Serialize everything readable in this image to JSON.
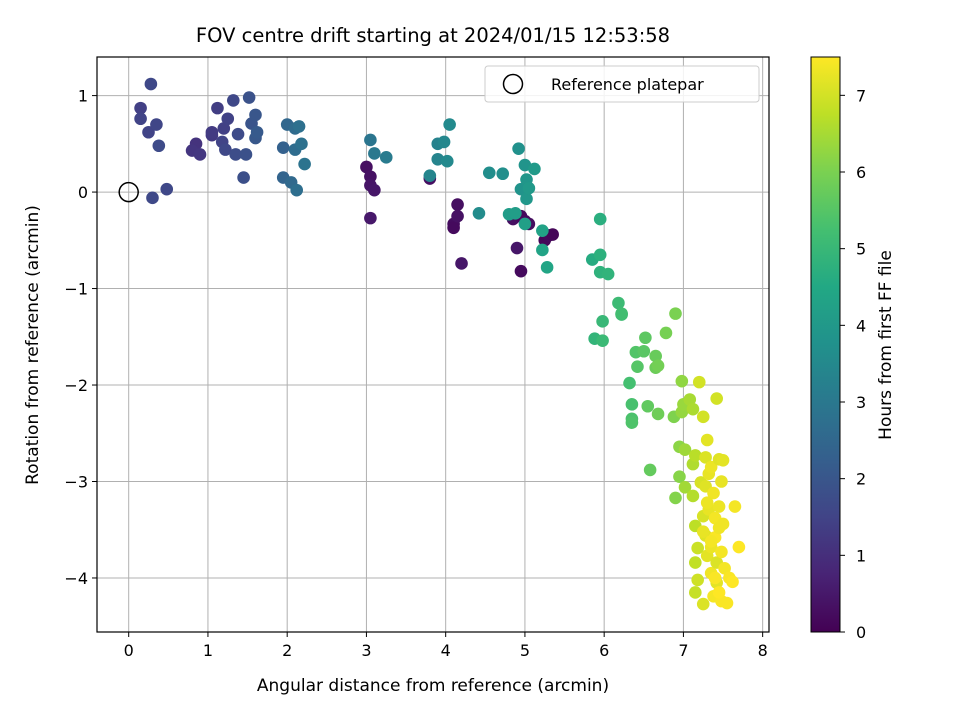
{
  "chart_data": {
    "type": "scatter",
    "title": "FOV centre drift starting at 2024/01/15 12:53:58",
    "xlabel": "Angular distance from reference (arcmin)",
    "ylabel": "Rotation from reference (arcmin)",
    "xlim": [
      -0.4,
      8.08
    ],
    "ylim": [
      -4.56,
      1.4
    ],
    "xticks": [
      0,
      1,
      2,
      3,
      4,
      5,
      6,
      7,
      8
    ],
    "yticks": [
      -4,
      -3,
      -2,
      -1,
      0,
      1
    ],
    "grid": true,
    "legend": {
      "placement": "top-right",
      "entries": [
        {
          "label": "Reference platepar",
          "marker": "open-circle"
        }
      ]
    },
    "colorbar": {
      "label": "Hours from first FF file",
      "range": [
        0,
        7.5
      ],
      "ticks": [
        0,
        1,
        2,
        3,
        4,
        5,
        6,
        7
      ],
      "colormap": "viridis"
    },
    "reference_point": {
      "x": 0,
      "y": 0
    },
    "points": [
      [
        3.0,
        0.26,
        0.3
      ],
      [
        3.05,
        0.16,
        0.35
      ],
      [
        3.05,
        0.07,
        0.4
      ],
      [
        3.1,
        0.02,
        0.45
      ],
      [
        3.05,
        -0.27,
        0.5
      ],
      [
        3.8,
        0.14,
        0.3
      ],
      [
        4.1,
        -0.33,
        0.25
      ],
      [
        4.1,
        -0.37,
        0.2
      ],
      [
        4.15,
        -0.13,
        0.3
      ],
      [
        4.15,
        -0.25,
        0.35
      ],
      [
        4.2,
        -0.74,
        0.45
      ],
      [
        4.85,
        -0.28,
        0.3
      ],
      [
        4.9,
        -0.58,
        0.45
      ],
      [
        4.95,
        -0.82,
        0.2
      ],
      [
        4.95,
        -0.25,
        0.15
      ],
      [
        5.0,
        -0.3,
        0.2
      ],
      [
        5.05,
        -0.33,
        0.25
      ],
      [
        5.25,
        -0.5,
        0.1
      ],
      [
        5.3,
        -0.45,
        0.15
      ],
      [
        5.35,
        -0.44,
        0.1
      ],
      [
        0.15,
        0.87,
        1.4
      ],
      [
        0.15,
        0.76,
        1.5
      ],
      [
        0.28,
        1.12,
        1.6
      ],
      [
        0.25,
        0.62,
        1.5
      ],
      [
        0.35,
        0.7,
        1.55
      ],
      [
        0.38,
        0.48,
        1.7
      ],
      [
        0.3,
        -0.06,
        1.65
      ],
      [
        0.48,
        0.03,
        1.6
      ],
      [
        0.85,
        0.5,
        1.1
      ],
      [
        0.8,
        0.43,
        1.15
      ],
      [
        0.9,
        0.39,
        1.2
      ],
      [
        1.05,
        0.59,
        1.25
      ],
      [
        1.05,
        0.62,
        1.3
      ],
      [
        1.12,
        0.87,
        1.35
      ],
      [
        1.2,
        0.66,
        1.4
      ],
      [
        1.25,
        0.76,
        1.45
      ],
      [
        1.18,
        0.52,
        1.5
      ],
      [
        1.22,
        0.44,
        1.6
      ],
      [
        1.32,
        0.95,
        1.6
      ],
      [
        1.38,
        0.6,
        1.7
      ],
      [
        1.35,
        0.39,
        1.75
      ],
      [
        1.45,
        0.15,
        1.8
      ],
      [
        1.48,
        0.39,
        1.85
      ],
      [
        1.52,
        0.98,
        1.9
      ],
      [
        1.55,
        0.71,
        1.95
      ],
      [
        1.6,
        0.8,
        2.0
      ],
      [
        1.6,
        0.56,
        2.05
      ],
      [
        1.62,
        0.62,
        2.1
      ],
      [
        1.95,
        0.46,
        2.3
      ],
      [
        1.95,
        0.15,
        2.4
      ],
      [
        2.0,
        0.7,
        2.5
      ],
      [
        2.05,
        0.1,
        2.55
      ],
      [
        2.1,
        0.66,
        2.6
      ],
      [
        2.1,
        0.44,
        2.65
      ],
      [
        2.12,
        0.02,
        2.7
      ],
      [
        2.15,
        0.68,
        2.75
      ],
      [
        2.18,
        0.5,
        2.8
      ],
      [
        2.22,
        0.29,
        2.85
      ],
      [
        3.05,
        0.54,
        2.9
      ],
      [
        3.1,
        0.4,
        3.0
      ],
      [
        3.25,
        0.36,
        3.1
      ],
      [
        3.8,
        0.17,
        3.4
      ],
      [
        3.9,
        0.5,
        3.3
      ],
      [
        3.9,
        0.34,
        3.35
      ],
      [
        3.98,
        0.52,
        3.45
      ],
      [
        4.02,
        0.32,
        3.5
      ],
      [
        4.05,
        0.7,
        3.55
      ],
      [
        4.42,
        -0.22,
        3.6
      ],
      [
        4.55,
        0.2,
        3.65
      ],
      [
        4.72,
        0.19,
        3.7
      ],
      [
        4.92,
        0.45,
        3.75
      ],
      [
        4.95,
        0.03,
        3.8
      ],
      [
        5.0,
        0.28,
        3.85
      ],
      [
        5.02,
        0.13,
        3.9
      ],
      [
        5.02,
        -0.07,
        3.95
      ],
      [
        5.05,
        0.04,
        4.0
      ],
      [
        5.12,
        0.24,
        4.05
      ],
      [
        4.8,
        -0.23,
        4.1
      ],
      [
        4.88,
        -0.22,
        4.15
      ],
      [
        5.0,
        -0.33,
        4.2
      ],
      [
        5.22,
        -0.4,
        4.3
      ],
      [
        5.22,
        -0.6,
        4.35
      ],
      [
        5.28,
        -0.78,
        4.4
      ],
      [
        5.85,
        -0.7,
        4.6
      ],
      [
        5.95,
        -0.28,
        4.7
      ],
      [
        5.95,
        -0.65,
        4.75
      ],
      [
        5.95,
        -0.83,
        4.8
      ],
      [
        6.05,
        -0.85,
        4.85
      ],
      [
        5.88,
        -1.52,
        4.9
      ],
      [
        5.98,
        -1.34,
        5.0
      ],
      [
        5.98,
        -1.54,
        5.05
      ],
      [
        6.18,
        -1.15,
        5.1
      ],
      [
        6.22,
        -1.27,
        5.15
      ],
      [
        6.22,
        -1.26,
        5.2
      ],
      [
        6.32,
        -1.98,
        5.25
      ],
      [
        6.35,
        -2.2,
        5.3
      ],
      [
        6.35,
        -2.35,
        5.35
      ],
      [
        6.35,
        -2.39,
        5.4
      ],
      [
        6.4,
        -1.66,
        5.45
      ],
      [
        6.42,
        -1.81,
        5.5
      ],
      [
        6.5,
        -1.65,
        5.55
      ],
      [
        6.52,
        -1.51,
        5.6
      ],
      [
        6.55,
        -2.22,
        5.65
      ],
      [
        6.58,
        -2.88,
        5.7
      ],
      [
        6.65,
        -1.7,
        5.75
      ],
      [
        6.65,
        -1.82,
        5.8
      ],
      [
        6.68,
        -2.3,
        5.85
      ],
      [
        6.68,
        -1.8,
        5.9
      ],
      [
        6.78,
        -1.46,
        5.95
      ],
      [
        6.9,
        -1.26,
        6.0
      ],
      [
        6.88,
        -2.33,
        6.05
      ],
      [
        6.9,
        -3.17,
        6.1
      ],
      [
        6.95,
        -2.95,
        6.15
      ],
      [
        6.95,
        -2.64,
        6.2
      ],
      [
        6.98,
        -1.96,
        6.25
      ],
      [
        6.98,
        -2.28,
        6.3
      ],
      [
        7.0,
        -2.2,
        6.35
      ],
      [
        7.02,
        -2.67,
        6.4
      ],
      [
        7.02,
        -3.06,
        6.45
      ],
      [
        7.08,
        -2.15,
        6.5
      ],
      [
        7.12,
        -2.25,
        6.55
      ],
      [
        7.12,
        -2.82,
        6.6
      ],
      [
        7.12,
        -3.15,
        6.65
      ],
      [
        7.15,
        -2.73,
        6.7
      ],
      [
        7.15,
        -3.46,
        6.75
      ],
      [
        7.15,
        -3.84,
        6.8
      ],
      [
        7.15,
        -4.15,
        6.85
      ],
      [
        7.18,
        -3.69,
        6.9
      ],
      [
        7.18,
        -4.02,
        6.95
      ],
      [
        7.2,
        -1.97,
        7.0
      ],
      [
        7.22,
        -3.01,
        7.05
      ],
      [
        7.25,
        -2.33,
        7.0
      ],
      [
        7.25,
        -3.36,
        7.05
      ],
      [
        7.25,
        -4.27,
        7.1
      ],
      [
        7.28,
        -2.75,
        7.1
      ],
      [
        7.28,
        -3.05,
        7.15
      ],
      [
        7.28,
        -3.56,
        7.15
      ],
      [
        7.3,
        -2.57,
        7.2
      ],
      [
        7.3,
        -3.77,
        7.2
      ],
      [
        7.32,
        -2.92,
        7.25
      ],
      [
        7.32,
        -3.29,
        7.25
      ],
      [
        7.35,
        -2.85,
        7.3
      ],
      [
        7.35,
        -3.68,
        7.3
      ],
      [
        7.35,
        -3.95,
        7.35
      ],
      [
        7.38,
        -3.12,
        7.35
      ],
      [
        7.38,
        -4.19,
        7.4
      ],
      [
        7.4,
        -3.38,
        7.4
      ],
      [
        7.4,
        -3.58,
        7.45
      ],
      [
        7.42,
        -2.14,
        7.0
      ],
      [
        7.42,
        -3.84,
        7.1
      ],
      [
        7.42,
        -4.05,
        7.2
      ],
      [
        7.45,
        -2.77,
        7.15
      ],
      [
        7.45,
        -3.26,
        7.3
      ],
      [
        7.45,
        -3.48,
        7.35
      ],
      [
        7.48,
        -3.0,
        7.25
      ],
      [
        7.48,
        -3.73,
        7.4
      ],
      [
        7.48,
        -4.24,
        7.45
      ],
      [
        7.5,
        -2.78,
        7.2
      ],
      [
        7.5,
        -3.44,
        7.35
      ],
      [
        7.52,
        -3.9,
        7.4
      ],
      [
        7.55,
        -4.26,
        7.45
      ],
      [
        7.58,
        -4.0,
        7.45
      ],
      [
        7.62,
        -4.04,
        7.5
      ],
      [
        7.65,
        -3.26,
        7.4
      ],
      [
        7.7,
        -3.68,
        7.5
      ],
      [
        7.4,
        -4.0,
        7.45
      ],
      [
        7.35,
        -3.62,
        7.4
      ],
      [
        7.3,
        -3.22,
        7.3
      ],
      [
        7.45,
        -4.15,
        7.5
      ],
      [
        7.25,
        -3.52,
        7.25
      ]
    ]
  }
}
